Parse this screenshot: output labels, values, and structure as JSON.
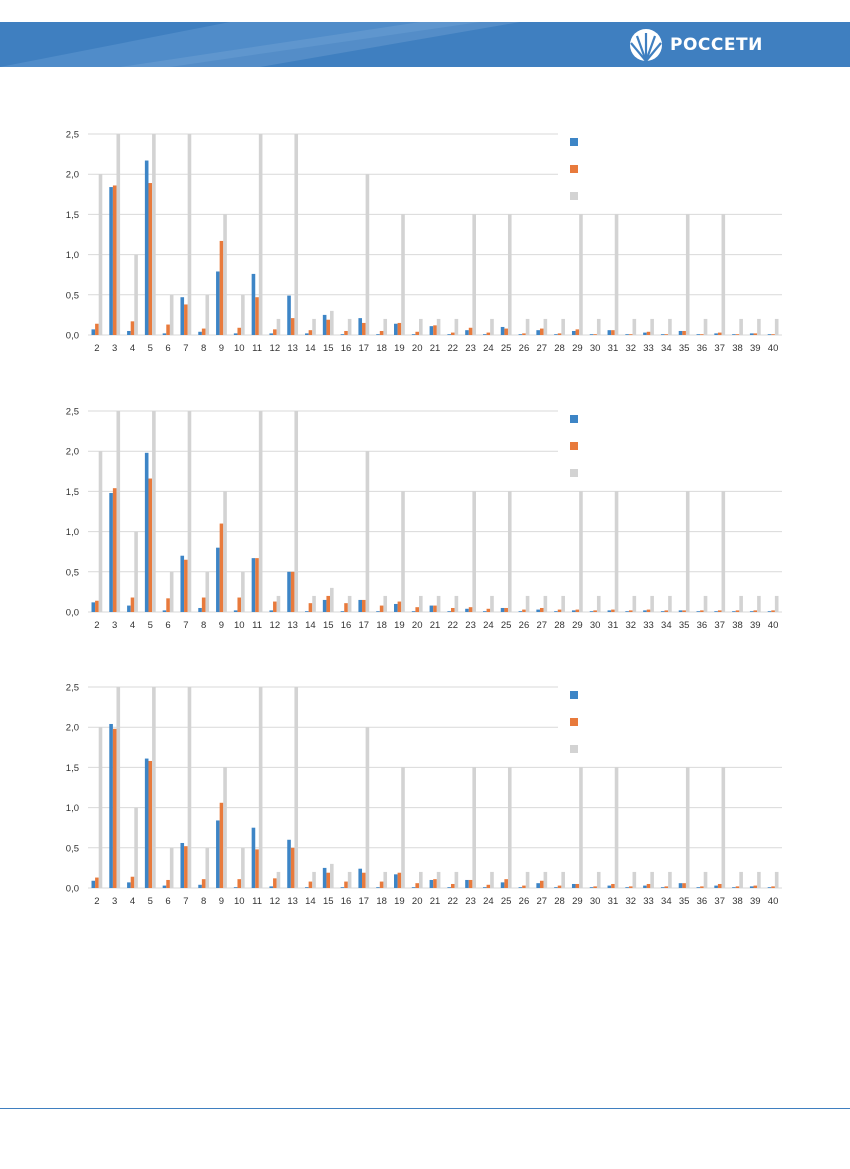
{
  "header": {
    "brand_name": "РОССЕТИ",
    "logo_icon": "rosseti-logo-icon",
    "colors": {
      "bar": "#3f7fc0",
      "wave": "#5f97cf"
    }
  },
  "colors": {
    "series1": "#3d85c6",
    "series2": "#e87a3c",
    "limit": "#d3d3d3",
    "grid": "#d9d9d9"
  },
  "chart_data": [
    {
      "type": "bar",
      "x": [
        2,
        3,
        4,
        5,
        6,
        7,
        8,
        9,
        10,
        11,
        12,
        13,
        14,
        15,
        16,
        17,
        18,
        19,
        20,
        21,
        22,
        23,
        24,
        25,
        26,
        27,
        28,
        29,
        30,
        31,
        32,
        33,
        34,
        35,
        36,
        37,
        38,
        39,
        40
      ],
      "ylim": [
        0,
        2.5
      ],
      "yticks": [
        "0,0",
        "0,5",
        "1,0",
        "1,5",
        "2,0",
        "2,5"
      ],
      "legend_position": "top-right",
      "series": [
        {
          "values": [
            0.07,
            1.84,
            0.05,
            2.17,
            0.02,
            0.47,
            0.04,
            0.79,
            0.02,
            0.76,
            0.02,
            0.49,
            0.02,
            0.25,
            0.01,
            0.21,
            0.01,
            0.14,
            0.01,
            0.11,
            0.01,
            0.06,
            0.01,
            0.1,
            0.01,
            0.06,
            0.01,
            0.05,
            0.01,
            0.06,
            0.01,
            0.03,
            0.01,
            0.05,
            0.01,
            0.02,
            0.01,
            0.02,
            0.01
          ]
        },
        {
          "values": [
            0.14,
            1.86,
            0.17,
            1.89,
            0.13,
            0.38,
            0.08,
            1.17,
            0.09,
            0.47,
            0.07,
            0.21,
            0.06,
            0.19,
            0.05,
            0.15,
            0.05,
            0.15,
            0.04,
            0.12,
            0.03,
            0.09,
            0.03,
            0.08,
            0.02,
            0.08,
            0.02,
            0.07,
            0.01,
            0.06,
            0.01,
            0.04,
            0.01,
            0.05,
            0.01,
            0.03,
            0.01,
            0.02,
            0.01
          ]
        },
        {
          "values": [
            2.0,
            2.5,
            1.0,
            2.5,
            0.5,
            2.5,
            0.5,
            1.5,
            0.5,
            2.5,
            0.2,
            2.5,
            0.2,
            0.3,
            0.2,
            2.0,
            0.2,
            1.5,
            0.2,
            0.2,
            0.2,
            1.5,
            0.2,
            1.5,
            0.2,
            0.2,
            0.2,
            1.5,
            0.2,
            1.5,
            0.2,
            0.2,
            0.2,
            1.5,
            0.2,
            1.5,
            0.2,
            0.2,
            0.2
          ]
        }
      ]
    },
    {
      "type": "bar",
      "x": [
        2,
        3,
        4,
        5,
        6,
        7,
        8,
        9,
        10,
        11,
        12,
        13,
        14,
        15,
        16,
        17,
        18,
        19,
        20,
        21,
        22,
        23,
        24,
        25,
        26,
        27,
        28,
        29,
        30,
        31,
        32,
        33,
        34,
        35,
        36,
        37,
        38,
        39,
        40
      ],
      "ylim": [
        0,
        2.5
      ],
      "yticks": [
        "0,0",
        "0,5",
        "1,0",
        "1,5",
        "2,0",
        "2,5"
      ],
      "legend_position": "top-right",
      "series": [
        {
          "values": [
            0.12,
            1.48,
            0.08,
            1.98,
            0.02,
            0.7,
            0.05,
            0.8,
            0.02,
            0.67,
            0.02,
            0.5,
            0.01,
            0.15,
            0.01,
            0.15,
            0.01,
            0.1,
            0.01,
            0.08,
            0.01,
            0.04,
            0.01,
            0.05,
            0.01,
            0.03,
            0.01,
            0.02,
            0.01,
            0.02,
            0.01,
            0.02,
            0.01,
            0.02,
            0.01,
            0.01,
            0.01,
            0.01,
            0.01
          ]
        },
        {
          "values": [
            0.14,
            1.54,
            0.18,
            1.66,
            0.17,
            0.65,
            0.18,
            1.1,
            0.18,
            0.67,
            0.13,
            0.5,
            0.11,
            0.2,
            0.11,
            0.15,
            0.08,
            0.13,
            0.06,
            0.08,
            0.05,
            0.06,
            0.04,
            0.05,
            0.03,
            0.05,
            0.03,
            0.03,
            0.02,
            0.03,
            0.02,
            0.03,
            0.02,
            0.02,
            0.02,
            0.02,
            0.02,
            0.02,
            0.02
          ]
        },
        {
          "values": [
            2.0,
            2.5,
            1.0,
            2.5,
            0.5,
            2.5,
            0.5,
            1.5,
            0.5,
            2.5,
            0.2,
            2.5,
            0.2,
            0.3,
            0.2,
            2.0,
            0.2,
            1.5,
            0.2,
            0.2,
            0.2,
            1.5,
            0.2,
            1.5,
            0.2,
            0.2,
            0.2,
            1.5,
            0.2,
            1.5,
            0.2,
            0.2,
            0.2,
            1.5,
            0.2,
            1.5,
            0.2,
            0.2,
            0.2
          ]
        }
      ]
    },
    {
      "type": "bar",
      "x": [
        2,
        3,
        4,
        5,
        6,
        7,
        8,
        9,
        10,
        11,
        12,
        13,
        14,
        15,
        16,
        17,
        18,
        19,
        20,
        21,
        22,
        23,
        24,
        25,
        26,
        27,
        28,
        29,
        30,
        31,
        32,
        33,
        34,
        35,
        36,
        37,
        38,
        39,
        40
      ],
      "ylim": [
        0,
        2.5
      ],
      "yticks": [
        "0,0",
        "0,5",
        "1,0",
        "1,5",
        "2,0",
        "2,5"
      ],
      "legend_position": "top-right",
      "series": [
        {
          "values": [
            0.09,
            2.04,
            0.07,
            1.61,
            0.03,
            0.56,
            0.04,
            0.84,
            0.01,
            0.75,
            0.02,
            0.6,
            0.01,
            0.25,
            0.01,
            0.24,
            0.01,
            0.17,
            0.01,
            0.1,
            0.01,
            0.1,
            0.01,
            0.07,
            0.01,
            0.06,
            0.01,
            0.05,
            0.01,
            0.03,
            0.01,
            0.03,
            0.01,
            0.06,
            0.01,
            0.03,
            0.01,
            0.02,
            0.01
          ]
        },
        {
          "values": [
            0.13,
            1.98,
            0.14,
            1.58,
            0.1,
            0.52,
            0.11,
            1.06,
            0.11,
            0.48,
            0.12,
            0.5,
            0.08,
            0.19,
            0.08,
            0.19,
            0.08,
            0.19,
            0.06,
            0.11,
            0.05,
            0.1,
            0.04,
            0.11,
            0.03,
            0.09,
            0.03,
            0.05,
            0.02,
            0.05,
            0.02,
            0.05,
            0.02,
            0.06,
            0.02,
            0.05,
            0.02,
            0.03,
            0.02
          ]
        },
        {
          "values": [
            2.0,
            2.5,
            1.0,
            2.5,
            0.5,
            2.5,
            0.5,
            1.5,
            0.5,
            2.5,
            0.2,
            2.5,
            0.2,
            0.3,
            0.2,
            2.0,
            0.2,
            1.5,
            0.2,
            0.2,
            0.2,
            1.5,
            0.2,
            1.5,
            0.2,
            0.2,
            0.2,
            1.5,
            0.2,
            1.5,
            0.2,
            0.2,
            0.2,
            1.5,
            0.2,
            1.5,
            0.2,
            0.2,
            0.2
          ]
        }
      ]
    }
  ]
}
